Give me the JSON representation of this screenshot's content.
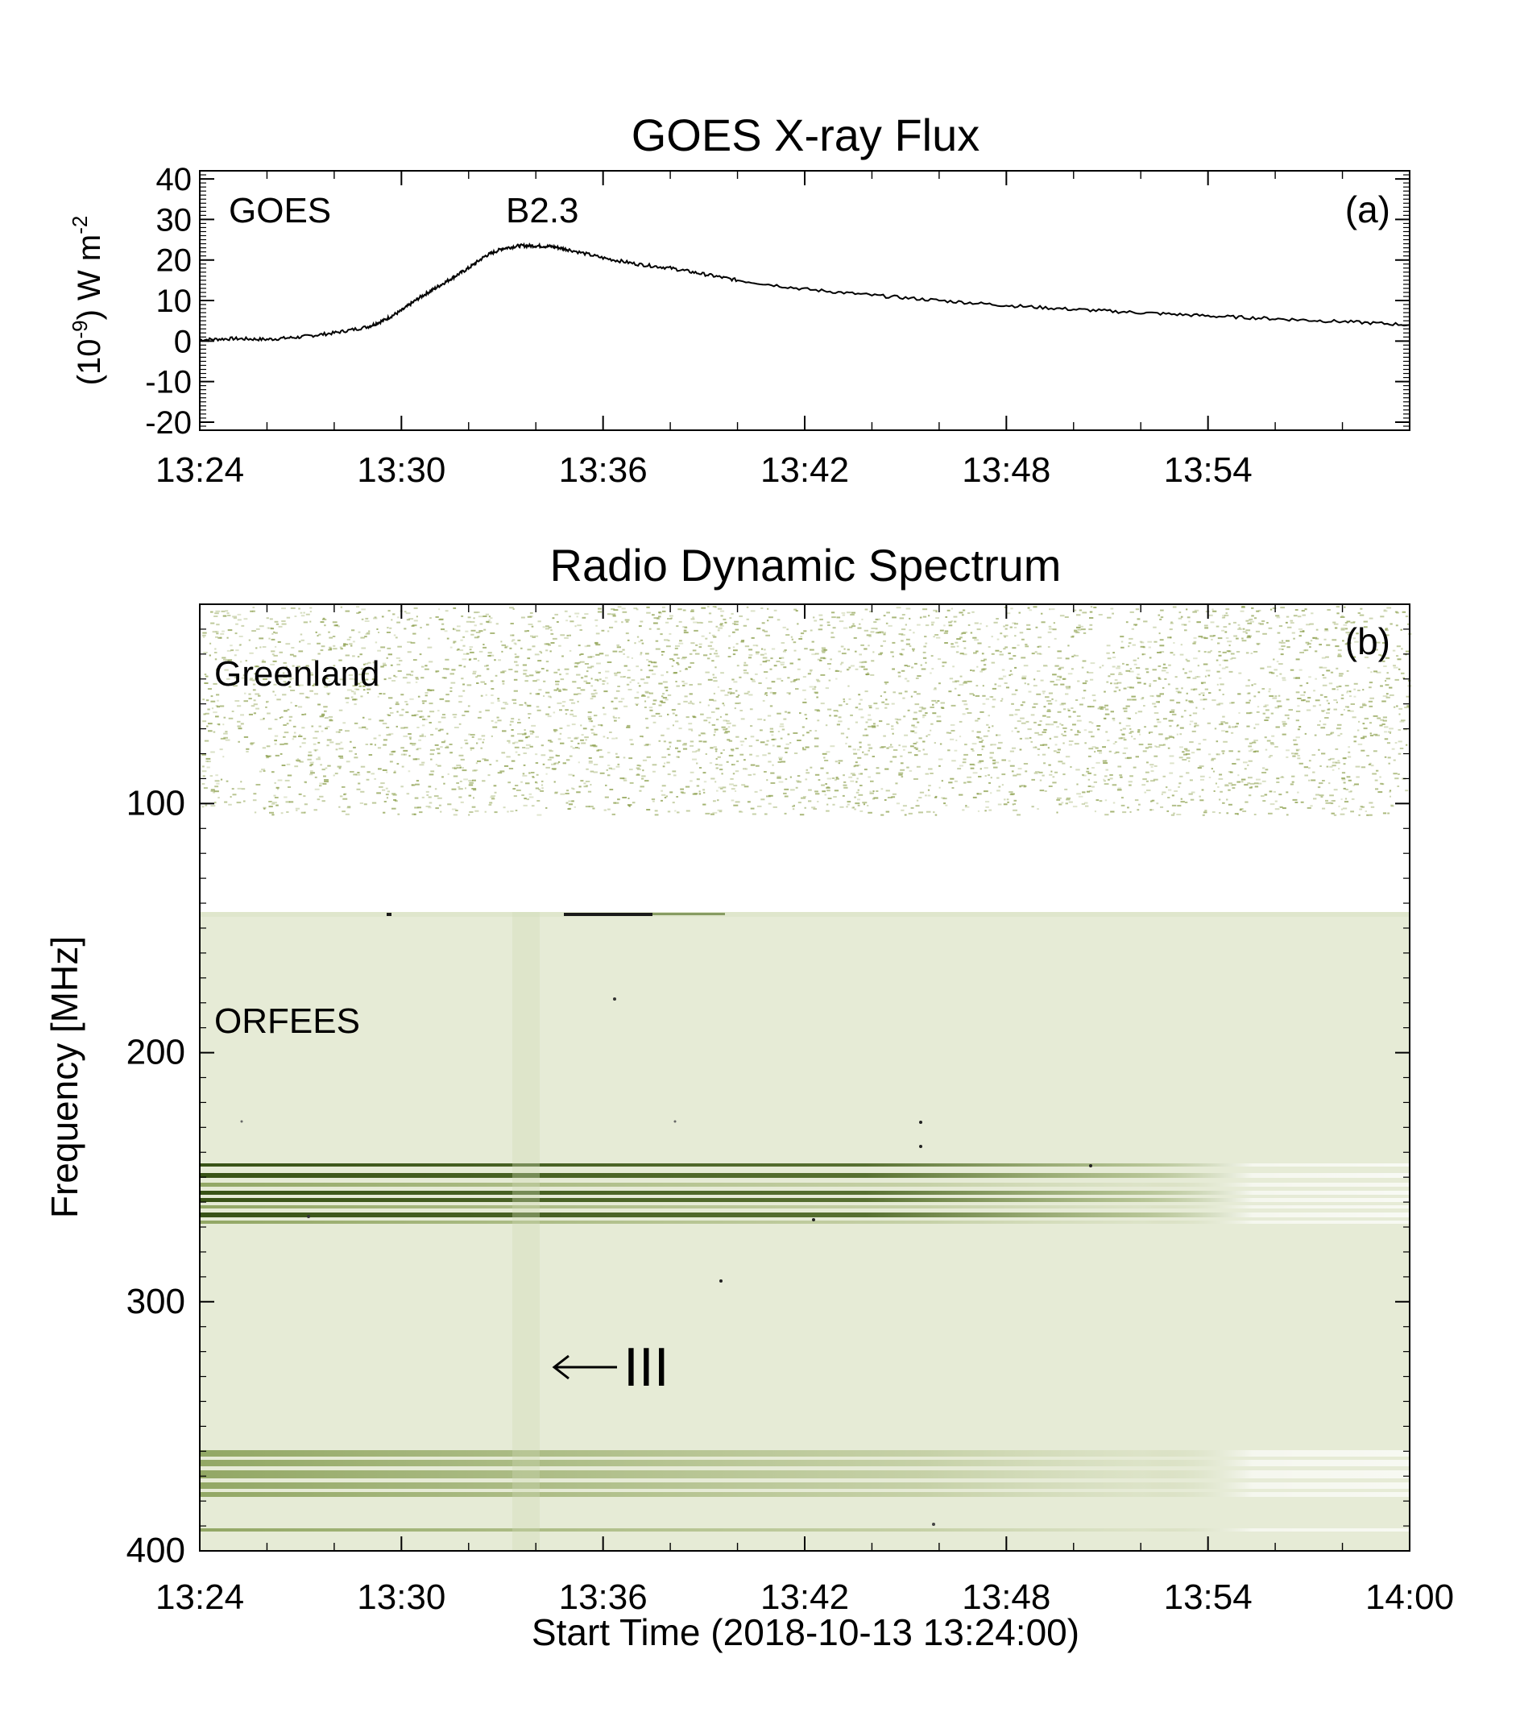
{
  "chart_data": [
    {
      "type": "line",
      "title": "GOES X-ray Flux",
      "ylabel_base": "(10",
      "ylabel_exp": "-9",
      "ylabel_unit": ") W m",
      "ylabel_unit_exp": "-2",
      "instrument_label": "GOES",
      "peak_label": "B2.3",
      "panel_label": "(a)",
      "x_range_minutes": [
        0,
        36
      ],
      "x_tick_labels": [
        "13:24",
        "13:30",
        "13:36",
        "13:42",
        "13:48",
        "13:54"
      ],
      "ylim": [
        -22,
        42
      ],
      "y_ticks": [
        40,
        30,
        20,
        10,
        0,
        -10,
        -20
      ],
      "y_tick_labels": [
        "40",
        "30",
        "20",
        "10",
        "0",
        "-10",
        "-20"
      ],
      "series": [
        {
          "x": [
            0,
            1,
            2,
            3,
            4,
            5,
            5.5,
            6,
            6.5,
            7,
            7.5,
            8,
            8.5,
            9,
            9.5,
            10,
            10.5,
            11,
            12,
            13,
            14,
            15,
            16,
            18,
            20,
            22,
            24,
            26,
            28,
            30,
            32,
            34,
            36
          ],
          "y": [
            0.3,
            0.6,
            0.4,
            1.0,
            2.0,
            3.5,
            5.2,
            7.5,
            10.5,
            13.0,
            15.5,
            18.0,
            21.0,
            22.8,
            23.5,
            23.5,
            23.3,
            22.5,
            20.5,
            19.0,
            18.0,
            16.5,
            15.0,
            12.8,
            11.3,
            10.0,
            8.8,
            7.8,
            7.0,
            6.2,
            5.5,
            4.8,
            4.0
          ]
        }
      ]
    },
    {
      "type": "heatmap",
      "title": "Radio Dynamic Spectrum",
      "xlabel": "Start Time (2018-10-13 13:24:00)",
      "ylabel": "Frequency [MHz]",
      "panel_label": "(b)",
      "x_range_minutes": [
        0,
        36
      ],
      "x_tick_labels": [
        "13:24",
        "13:30",
        "13:36",
        "13:42",
        "13:48",
        "13:54",
        "14:00"
      ],
      "ylim": [
        20,
        400
      ],
      "y_ticks": [
        100,
        200,
        300,
        400
      ],
      "y_tick_labels": [
        "100",
        "200",
        "300",
        "400"
      ],
      "instrument_labels": [
        {
          "text": "Greenland",
          "freq_range": [
            20,
            105
          ]
        },
        {
          "text": "ORFEES",
          "freq_range": [
            144,
            400
          ]
        }
      ],
      "annotation": {
        "text": "III",
        "time_minutes": 10.5,
        "freq": 327
      },
      "band_colors": {
        "orfees_bg": "#e6ebd6",
        "dark": "#3e5a14",
        "mid": "#6e8a34",
        "greenland_dot": "#8a9e4a"
      }
    }
  ]
}
